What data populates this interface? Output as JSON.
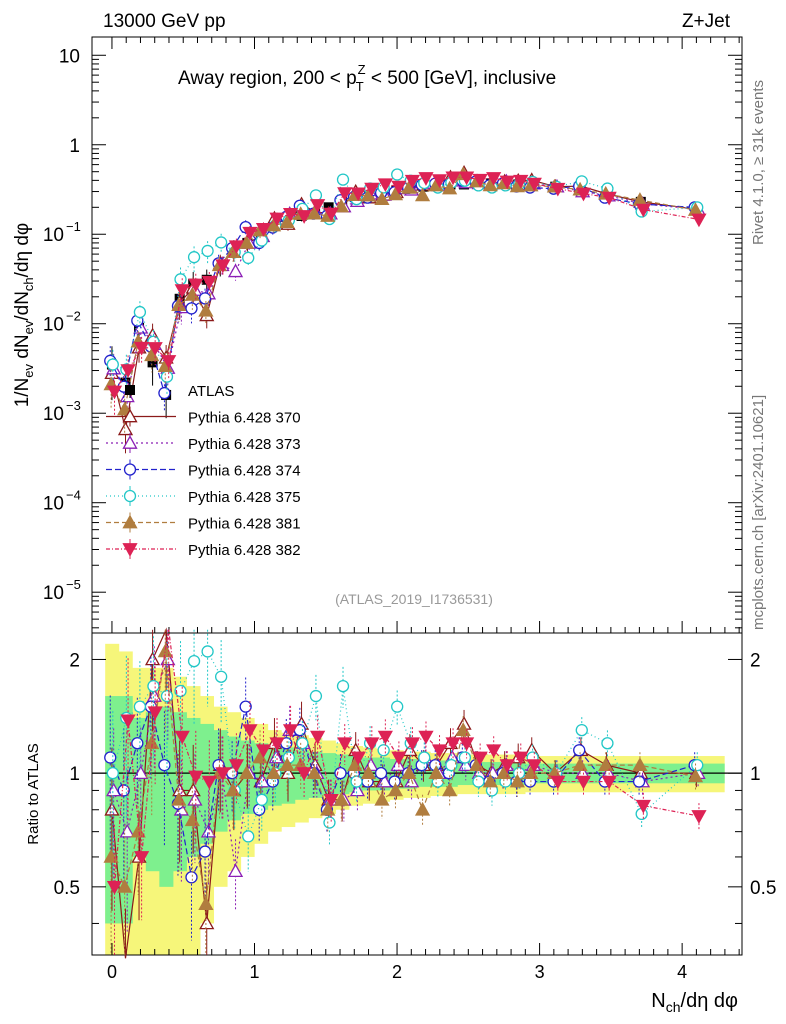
{
  "header": {
    "left": "13000 GeV pp",
    "right": "Z+Jet"
  },
  "side_labels": {
    "top": "Rivet 4.1.0, ≥ 31k events",
    "bottom": "mcplots.cern.ch [arXiv:2401.10621]"
  },
  "chart_data": {
    "type": "scatter",
    "title": "Away region, 200 < p_T^Z < 500 [GeV], inclusive",
    "title_parts": {
      "pre": "Away region, 200 < p",
      "sup": "Z",
      "sub": "T",
      "post": " < 500 [GeV], inclusive"
    },
    "xlabel": "N_ch/dη dφ",
    "xlabel_parts": {
      "a": "N",
      "sub": "ch",
      "b": "/dη dφ"
    },
    "ylabel": "1/N_ev dN_ev/dN_ch/dη dφ",
    "ratio_ylabel": "Ratio to ATLAS",
    "watermark": "(ATLAS_2019_I1736531)",
    "xlim": [
      -0.14,
      4.42
    ],
    "ylim_main": [
      3.5e-06,
      16
    ],
    "ylim_ratio": [
      0.33,
      2.35
    ],
    "y_scale": "log",
    "x_ticks": [
      "0",
      "1",
      "2",
      "3",
      "4"
    ],
    "y_ticks_main": [
      {
        "v": 10,
        "m": "10",
        "e": ""
      },
      {
        "v": 1,
        "m": "1",
        "e": ""
      },
      {
        "v": 0.1,
        "m": "10",
        "e": "−1"
      },
      {
        "v": 0.01,
        "m": "10",
        "e": "−2"
      },
      {
        "v": 0.001,
        "m": "10",
        "e": "−3"
      },
      {
        "v": 0.0001,
        "m": "10",
        "e": "−4"
      },
      {
        "v": 1e-05,
        "m": "10",
        "e": "−5"
      }
    ],
    "y_ticks_ratio": [
      "0.5",
      "1",
      "2"
    ],
    "legend_position": "center-left",
    "x": [
      0.0,
      0.095,
      0.19,
      0.285,
      0.38,
      0.475,
      0.57,
      0.665,
      0.76,
      0.855,
      0.95,
      1.045,
      1.14,
      1.235,
      1.33,
      1.425,
      1.52,
      1.615,
      1.71,
      1.805,
      1.9,
      1.995,
      2.09,
      2.185,
      2.28,
      2.375,
      2.47,
      2.565,
      2.66,
      2.755,
      2.85,
      2.945,
      3.11,
      3.29,
      3.47,
      3.71,
      4.1
    ],
    "atlas": {
      "name": "ATLAS",
      "values": [
        0.0035,
        0.0022,
        0.009,
        0.0037,
        0.0016,
        0.019,
        0.028,
        0.031,
        0.045,
        0.07,
        0.08,
        0.1,
        0.125,
        0.13,
        0.16,
        0.17,
        0.2,
        0.24,
        0.26,
        0.27,
        0.29,
        0.31,
        0.33,
        0.34,
        0.35,
        0.36,
        0.36,
        0.37,
        0.37,
        0.37,
        0.36,
        0.35,
        0.34,
        0.3,
        0.27,
        0.23,
        0.19
      ],
      "band_inner": [
        0.6,
        0.6,
        0.4,
        0.45,
        0.5,
        0.45,
        0.4,
        0.35,
        0.3,
        0.25,
        0.22,
        0.2,
        0.18,
        0.17,
        0.15,
        0.14,
        0.13,
        0.12,
        0.11,
        0.1,
        0.1,
        0.09,
        0.09,
        0.08,
        0.08,
        0.08,
        0.07,
        0.07,
        0.07,
        0.07,
        0.07,
        0.06,
        0.06,
        0.06,
        0.06,
        0.06,
        0.06
      ],
      "band_outer": [
        1.2,
        1.1,
        0.9,
        0.9,
        0.9,
        0.8,
        0.7,
        0.6,
        0.5,
        0.45,
        0.4,
        0.35,
        0.3,
        0.28,
        0.26,
        0.24,
        0.22,
        0.2,
        0.18,
        0.17,
        0.16,
        0.15,
        0.14,
        0.14,
        0.13,
        0.13,
        0.12,
        0.12,
        0.12,
        0.12,
        0.12,
        0.11,
        0.11,
        0.11,
        0.11,
        0.11,
        0.11
      ]
    },
    "series": [
      {
        "name": "Pythia 6.428 370",
        "color": "#8b1a1a",
        "marker": "triangle-open",
        "dash": "",
        "x_offset": 0.0,
        "ratio": [
          0.8,
          0.3,
          0.6,
          2.0,
          2.6,
          0.9,
          0.9,
          0.4,
          1.05,
          0.9,
          1.0,
          0.95,
          1.2,
          1.0,
          1.35,
          1.05,
          0.85,
          0.85,
          1.15,
          0.95,
          0.95,
          0.95,
          1.15,
          1.05,
          1.05,
          1.2,
          1.35,
          1.05,
          1.0,
          1.05,
          1.1,
          1.15,
          1.0,
          1.15,
          1.05,
          1.0,
          1.0
        ]
      },
      {
        "name": "Pythia 6.428 373",
        "color": "#8b1fb5",
        "marker": "triangle-open",
        "dash": "2,3",
        "x_offset": 0.012,
        "ratio": [
          0.9,
          0.7,
          1.0,
          1.6,
          2.0,
          0.8,
          0.85,
          0.7,
          1.0,
          0.55,
          1.0,
          0.95,
          1.1,
          1.3,
          1.2,
          1.0,
          0.85,
          0.85,
          0.9,
          1.05,
          0.95,
          1.05,
          0.95,
          1.1,
          1.0,
          1.1,
          1.05,
          1.0,
          1.0,
          1.05,
          1.0,
          1.05,
          1.0,
          1.0,
          1.0,
          0.95,
          1.0
        ]
      },
      {
        "name": "Pythia 6.428 374",
        "color": "#2222cc",
        "marker": "circle-open",
        "dash": "6,3",
        "x_offset": -0.012,
        "ratio": [
          1.1,
          0.9,
          1.2,
          1.5,
          1.05,
          0.83,
          0.53,
          0.62,
          1.05,
          1.0,
          1.5,
          0.8,
          0.95,
          1.2,
          1.3,
          1.0,
          0.8,
          1.0,
          1.0,
          0.95,
          1.0,
          0.95,
          1.0,
          1.05,
          1.05,
          1.0,
          1.1,
          1.05,
          0.95,
          1.0,
          0.95,
          0.95,
          0.95,
          1.15,
          0.95,
          0.95,
          1.05
        ]
      },
      {
        "name": "Pythia 6.428 375",
        "color": "#22c7c7",
        "marker": "circle-open",
        "dash": "1,3",
        "x_offset": 0.006,
        "ratio": [
          1.0,
          1.4,
          1.5,
          1.7,
          1.6,
          1.65,
          1.98,
          2.1,
          1.8,
          0.9,
          0.68,
          0.85,
          1.0,
          1.1,
          1.2,
          1.6,
          0.74,
          1.7,
          0.95,
          1.2,
          1.15,
          1.5,
          1.2,
          1.1,
          0.95,
          1.05,
          1.1,
          0.95,
          0.9,
          0.95,
          1.0,
          1.1,
          1.0,
          1.3,
          1.2,
          0.78,
          1.05
        ]
      },
      {
        "name": "Pythia 6.428 381",
        "color": "#b07d3f",
        "marker": "triangle-filled",
        "dash": "5,3",
        "x_offset": -0.006,
        "ratio": [
          0.6,
          0.5,
          0.7,
          1.2,
          2.1,
          0.85,
          0.75,
          0.45,
          1.0,
          0.9,
          1.0,
          1.1,
          1.0,
          1.05,
          1.05,
          1.0,
          0.8,
          0.85,
          1.05,
          1.0,
          0.85,
          0.9,
          1.0,
          0.8,
          1.0,
          0.9,
          1.3,
          1.05,
          0.95,
          1.0,
          0.95,
          1.0,
          1.0,
          1.05,
          1.05,
          1.05,
          0.98
        ]
      },
      {
        "name": "Pythia 6.428 382",
        "color": "#dd2255",
        "marker": "triangle-down-filled",
        "dash": "4,2,1,2",
        "x_offset": 0.018,
        "ratio": [
          0.5,
          1.38,
          0.6,
          1.45,
          2.4,
          1.25,
          0.98,
          0.95,
          1.0,
          1.05,
          1.3,
          1.15,
          1.2,
          1.3,
          1.0,
          1.25,
          0.85,
          1.2,
          1.1,
          1.2,
          1.25,
          1.1,
          1.2,
          1.25,
          1.15,
          1.2,
          1.2,
          1.1,
          1.15,
          1.05,
          1.1,
          1.05,
          0.95,
          0.95,
          0.95,
          0.82,
          0.77
        ]
      }
    ]
  }
}
